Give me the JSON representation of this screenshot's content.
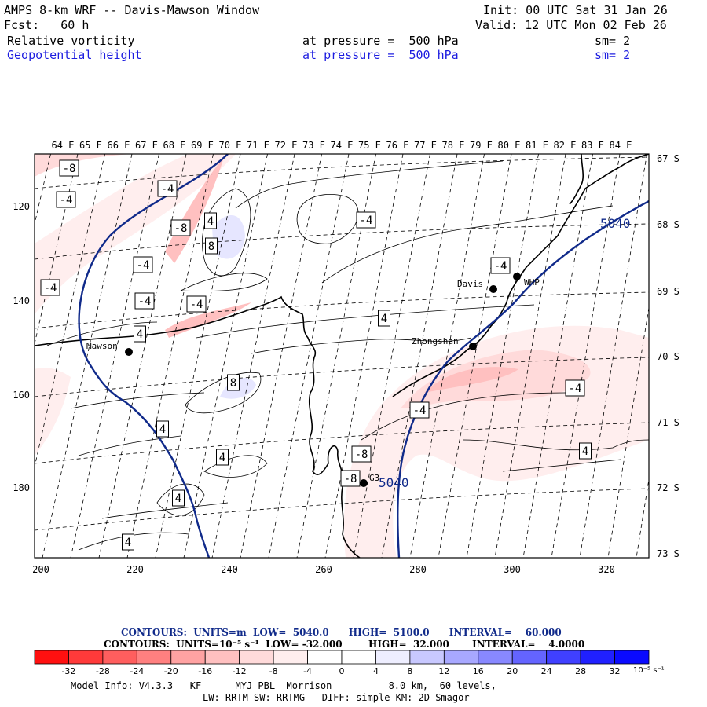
{
  "header": {
    "line1_left": "AMPS 8-km WRF -- Davis-Mawson Window",
    "line2_left": "Fcst:   60 h",
    "line1_right": "Init: 00 UTC Sat 31 Jan 26",
    "line2_right": "Valid: 12 UTC Mon 02 Feb 26",
    "field1_name": "Relative vorticity",
    "field1_level": "at pressure =  500 hPa",
    "field1_sm": "sm= 2",
    "field2_name": "Geopotential height",
    "field2_level": "at pressure =  500 hPa",
    "field2_sm": "sm= 2"
  },
  "top_lon_labels": [
    "64 E",
    "65 E",
    "66 E",
    "67 E",
    "68 E",
    "69 E",
    "70 E",
    "71 E",
    "72 E",
    "73 E",
    "74 E",
    "75 E",
    "76 E",
    "77 E",
    "78 E",
    "79 E",
    "80 E",
    "81 E",
    "82 E",
    "83 E",
    "84 E"
  ],
  "right_lat_labels": [
    "67 S",
    "68 S",
    "69 S",
    "70 S",
    "71 S",
    "72 S",
    "73 S"
  ],
  "left_y_labels": [
    "120",
    "140",
    "160",
    "180"
  ],
  "bottom_x_labels": [
    "200",
    "220",
    "240",
    "260",
    "280",
    "300",
    "320"
  ],
  "stations": [
    "Mawson",
    "Davis",
    "WHP",
    "Zhongshan",
    "G3"
  ],
  "height_contour_labels": [
    "5040",
    "5040"
  ],
  "vorticity_labels": [
    "-8",
    "-4",
    "-4",
    "-8",
    "-4",
    "-4",
    "-4",
    "4",
    "8",
    "4",
    "-4",
    "4",
    "8",
    "4",
    "4",
    "4",
    "4",
    "-4",
    "-4",
    "-8",
    "-8",
    "-4",
    "-4",
    "4"
  ],
  "contour_info": {
    "line1": "CONTOURS:  UNITS=m  LOW=  5040.0      HIGH=  5100.0      INTERVAL=    60.000",
    "line2": "CONTOURS:  UNITS=10⁻⁵ s⁻¹  LOW= -32.000        HIGH=  32.000       INTERVAL=    4.0000"
  },
  "colorbar": {
    "labels": [
      "-32",
      "-28",
      "-24",
      "-20",
      "-16",
      "-12",
      "-8",
      "-4",
      "0",
      "4",
      "8",
      "12",
      "16",
      "20",
      "24",
      "28",
      "32"
    ],
    "unit": "10⁻⁵ s⁻¹",
    "colors": [
      "#ff1010",
      "#ff3a3a",
      "#ff5e5e",
      "#ff8080",
      "#ffa2a2",
      "#ffc0c0",
      "#ffdada",
      "#ffeeee",
      "#ffffff",
      "#ffffff",
      "#eeeeff",
      "#c8c8ff",
      "#a8a8ff",
      "#8888ff",
      "#6464ff",
      "#4040ff",
      "#1414ff"
    ]
  },
  "footer": {
    "model_info": "Model Info: V4.3.3   KF      MYJ PBL  Morrison          8.0 km,  60 levels,",
    "physics": "LW: RRTM SW: RRTMG   DIFF: simple KM: 2D Smagor"
  }
}
